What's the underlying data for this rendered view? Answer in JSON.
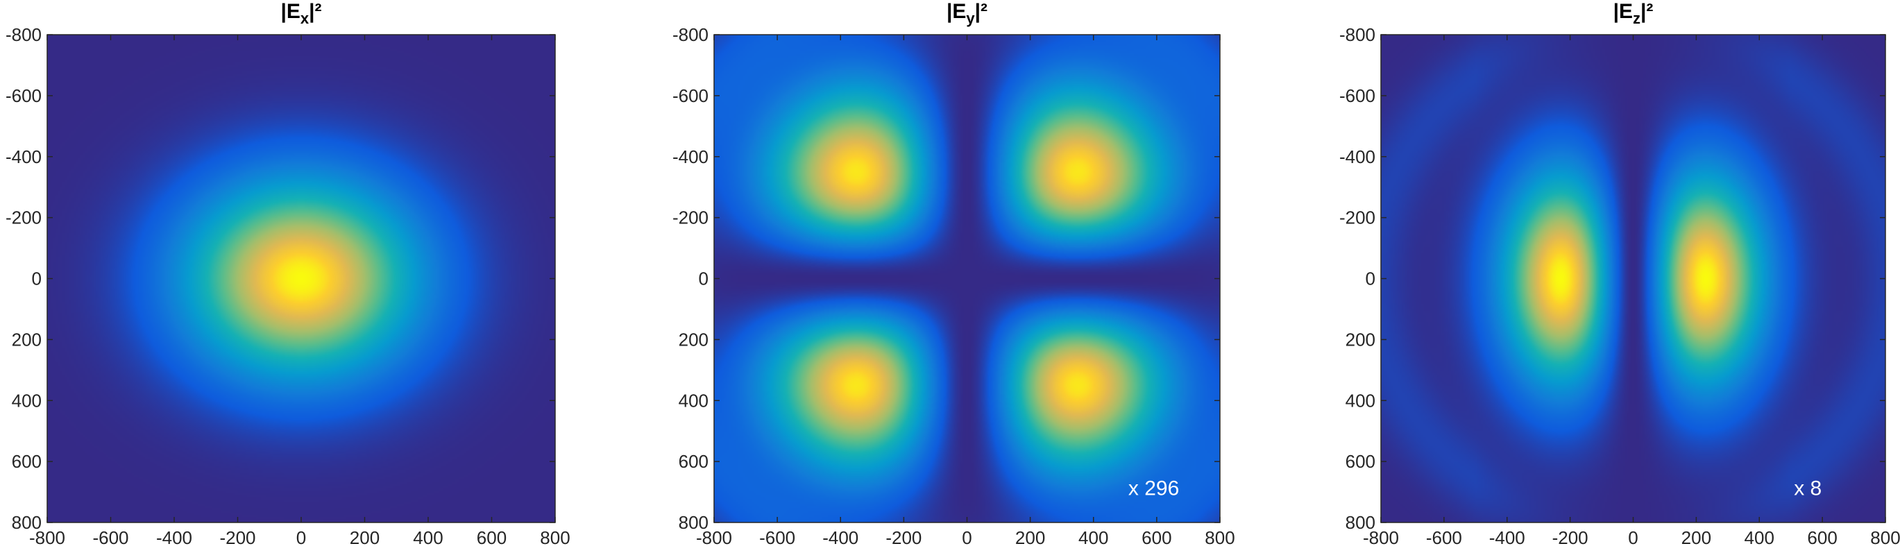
{
  "colors": {
    "colormap": "parula",
    "background_field": "#352a87",
    "axis_line": "#262626",
    "annotation_text": "#ffffff"
  },
  "chart_data": [
    {
      "type": "heatmap",
      "title": "|E_x|²",
      "title_parts": {
        "pre": "|E",
        "sub": "x",
        "post": "|²"
      },
      "xlim": [
        -800,
        800
      ],
      "ylim": [
        -800,
        800
      ],
      "y_direction": "reversed",
      "x_ticks": [
        -800,
        -600,
        -400,
        -200,
        0,
        200,
        400,
        600,
        800
      ],
      "y_ticks": [
        -800,
        -600,
        -400,
        -200,
        0,
        200,
        400,
        600,
        800
      ],
      "x_tick_labels": [
        "-800",
        "-600",
        "-400",
        "-200",
        "0",
        "200",
        "400",
        "600",
        "800"
      ],
      "y_tick_labels": [
        "-800",
        "-600",
        "-400",
        "-200",
        "0",
        "200",
        "400",
        "600",
        "800"
      ],
      "colormap": "parula",
      "pattern": "single gaussian lobe",
      "lobes": [
        {
          "x": 0,
          "y": 0,
          "peak": 1.0,
          "sx": 245,
          "sy": 215
        }
      ],
      "annotation": {
        "text": "",
        "scale": null
      }
    },
    {
      "type": "heatmap",
      "title": "|E_y|²",
      "title_parts": {
        "pre": "|E",
        "sub": "y",
        "post": "|²"
      },
      "xlim": [
        -800,
        800
      ],
      "ylim": [
        -800,
        800
      ],
      "y_direction": "reversed",
      "x_ticks": [
        -800,
        -600,
        -400,
        -200,
        0,
        200,
        400,
        600,
        800
      ],
      "y_ticks": [
        -800,
        -600,
        -400,
        -200,
        0,
        200,
        400,
        600,
        800
      ],
      "x_tick_labels": [
        "-800",
        "-600",
        "-400",
        "-200",
        "0",
        "200",
        "400",
        "600",
        "800"
      ],
      "y_tick_labels": [
        "-800",
        "-600",
        "-400",
        "-200",
        "0",
        "200",
        "400",
        "600",
        "800"
      ],
      "colormap": "parula",
      "pattern": "four-lobe quadrupole",
      "lobes": [
        {
          "x": -350,
          "y": -350,
          "peak": 0.92
        },
        {
          "x": 350,
          "y": -350,
          "peak": 0.92
        },
        {
          "x": -350,
          "y": 350,
          "peak": 0.92
        },
        {
          "x": 350,
          "y": 350,
          "peak": 0.92
        }
      ],
      "annotation": {
        "text": "x  296",
        "scale": 296
      }
    },
    {
      "type": "heatmap",
      "title": "|E_z|²",
      "title_parts": {
        "pre": "|E",
        "sub": "z",
        "post": "|²"
      },
      "xlim": [
        -800,
        800
      ],
      "ylim": [
        -800,
        800
      ],
      "y_direction": "reversed",
      "x_ticks": [
        -800,
        -600,
        -400,
        -200,
        0,
        200,
        400,
        600,
        800
      ],
      "y_ticks": [
        -800,
        -600,
        -400,
        -200,
        0,
        200,
        400,
        600,
        800
      ],
      "x_tick_labels": [
        "-800",
        "-600",
        "-400",
        "-200",
        "0",
        "200",
        "400",
        "600",
        "800"
      ],
      "y_tick_labels": [
        "-800",
        "-600",
        "-400",
        "-200",
        "0",
        "200",
        "400",
        "600",
        "800"
      ],
      "colormap": "parula",
      "pattern": "two-lobe dipole along x",
      "lobes": [
        {
          "x": -320,
          "y": 0,
          "peak": 1.0
        },
        {
          "x": 320,
          "y": 0,
          "peak": 1.0
        }
      ],
      "annotation": {
        "text": "x    8",
        "scale": 8
      }
    }
  ]
}
